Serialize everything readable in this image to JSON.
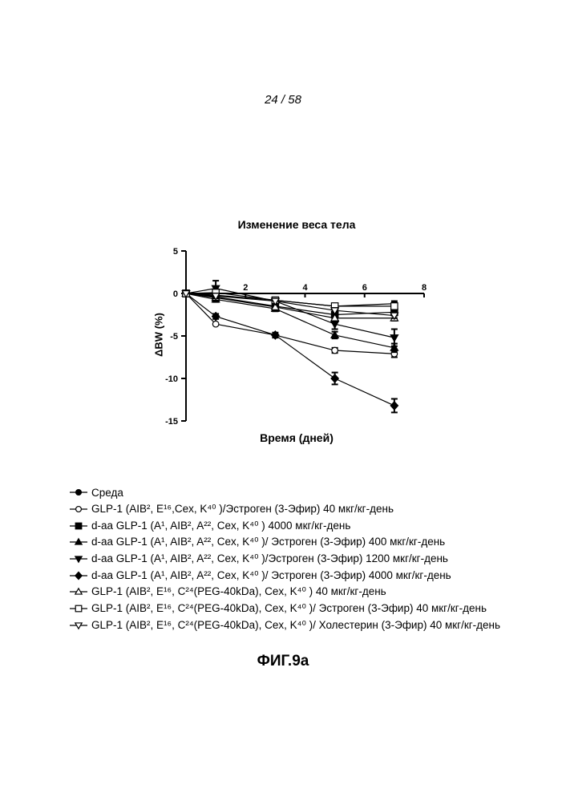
{
  "page": {
    "page_number": "24 / 58",
    "figure_caption": "ФИГ.9a"
  },
  "chart_data": {
    "type": "line",
    "title": "Изменение веса тела",
    "xlabel": "Время (дней)",
    "ylabel": "ΔBW (%)",
    "xlim": [
      0,
      8
    ],
    "ylim": [
      -15,
      5
    ],
    "x_ticks": [
      2,
      4,
      6,
      8
    ],
    "y_ticks": [
      5,
      0,
      -5,
      -10,
      -15
    ],
    "grid": false,
    "legend_position": "bottom",
    "x": [
      0,
      1,
      3,
      5,
      7
    ],
    "series": [
      {
        "name": "Среда",
        "marker": "filled-circle",
        "values": [
          0,
          -0.2,
          -0.8,
          -1.5,
          -1.2
        ],
        "errors": [
          0,
          0.3,
          0.3,
          0.3,
          0.3
        ]
      },
      {
        "name": "GLP-1 (AIB², E¹⁶,Cex, K⁴⁰ )/Эстроген (3-Эфир)  40 мкг/кг-день",
        "marker": "open-circle",
        "values": [
          0,
          -3.6,
          -4.9,
          -6.7,
          -7.1
        ],
        "errors": [
          0,
          0.2,
          0.2,
          0.3,
          0.4
        ]
      },
      {
        "name": "d-aa GLP-1 (A¹, AIB², A²², Cex, K⁴⁰ ) 4000 мкг/кг-день",
        "marker": "filled-square",
        "values": [
          0,
          -0.4,
          -1.5,
          -2.5,
          -2.2
        ],
        "errors": [
          0,
          0.3,
          0.3,
          0.4,
          0.4
        ]
      },
      {
        "name": "d-aa GLP-1 (A¹, AIB², A²², Cex, K⁴⁰ )/ Эстроген (3-Эфир) 400 мкг/кг-день",
        "marker": "filled-triangle-up",
        "values": [
          0,
          -0.7,
          -1.8,
          -4.9,
          -6.4
        ],
        "errors": [
          0,
          0.3,
          0.3,
          0.4,
          0.5
        ]
      },
      {
        "name": "d-aa GLP-1 (A¹, AIB², A²², Cex, K⁴⁰ )/Эстроген (3-Эфир)  1200 мкг/кг-день",
        "marker": "filled-triangle-down",
        "values": [
          0,
          0.6,
          -0.9,
          -3.6,
          -5.2
        ],
        "errors": [
          0,
          0.9,
          0.4,
          0.6,
          1.0
        ]
      },
      {
        "name": "d-aa GLP-1 (A¹, AIB², A²², Cex, K⁴⁰ )/ Эстроген (3-Эфир)  4000 мкг/кг-день",
        "marker": "filled-diamond",
        "values": [
          0,
          -2.7,
          -4.9,
          -10.0,
          -13.2
        ],
        "errors": [
          0,
          0.3,
          0.3,
          0.7,
          0.8
        ]
      },
      {
        "name": "GLP-1 (AIB², E¹⁶, C²⁴(PEG-40kDa), Cex, K⁴⁰ )  40 мкг/кг-день",
        "marker": "open-triangle-up",
        "values": [
          0,
          -0.5,
          -1.6,
          -2.9,
          -2.9
        ],
        "errors": [
          0,
          0.3,
          0.3,
          0.3,
          0.3
        ]
      },
      {
        "name": "GLP-1 (AIB², E¹⁶, C²⁴(PEG-40kDa), Cex, K⁴⁰ )/ Эстроген (3-Эфир) 40 мкг/кг-день",
        "marker": "open-square",
        "values": [
          0,
          0.1,
          -0.8,
          -1.5,
          -1.5
        ],
        "errors": [
          0,
          0.3,
          0.3,
          0.3,
          0.3
        ]
      },
      {
        "name": "GLP-1 (AIB², E¹⁶, C²⁴(PEG-40kDa), Cex, K⁴⁰ )/ Холестерин (3-Эфир) 40 мкг/кг-день",
        "marker": "open-triangle-down",
        "values": [
          0,
          -0.3,
          -0.9,
          -2.0,
          -2.6
        ],
        "errors": [
          0,
          0.3,
          0.3,
          0.3,
          0.3
        ]
      }
    ]
  }
}
